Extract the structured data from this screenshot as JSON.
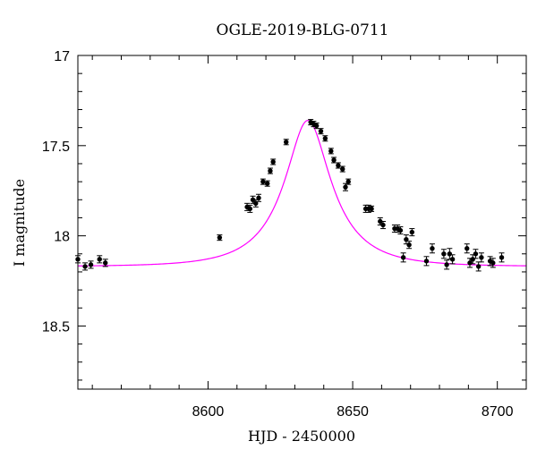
{
  "chart_data": {
    "type": "scatter",
    "title": "OGLE-2019-BLG-0711",
    "xlabel": "HJD - 2450000",
    "ylabel": "I magnitude",
    "xlim": [
      8555,
      8710
    ],
    "ylim": [
      17,
      18.85
    ],
    "y_inverted": true,
    "x_ticks": [
      8600,
      8650,
      8700
    ],
    "y_ticks": [
      17,
      17.5,
      18,
      18.5
    ],
    "x_tick_labels": [
      "8600",
      "8650",
      "8700"
    ],
    "y_tick_labels": [
      "17",
      "17.5",
      "18",
      "18.5"
    ],
    "grid": false,
    "legend": "none",
    "colors": {
      "data": "#000000",
      "model": "#ff00ff"
    },
    "series": [
      {
        "kind": "points",
        "x": [
          8555,
          8557.5,
          8559.5,
          8562.5,
          8564.5,
          8604,
          8613.5,
          8614.5,
          8615.5,
          8616.5,
          8617.5,
          8619,
          8620.5,
          8621.5,
          8622.5,
          8627,
          8635.5,
          8636.5,
          8637.5,
          8639,
          8640.5,
          8642.5,
          8643.5,
          8645,
          8646.5,
          8647.5,
          8648.5,
          8654.5,
          8655.5,
          8656.5,
          8659.5,
          8660.5,
          8664.5,
          8665.5,
          8666.5,
          8667.5,
          8668.5,
          8669.5,
          8670.5,
          8675.5,
          8677.5,
          8681.5,
          8682.5,
          8683.5,
          8684.5,
          8689.5,
          8690.5,
          8691.5,
          8692.5,
          8693.5,
          8694.5,
          8697.5,
          8698.5,
          8701.5
        ],
        "y": [
          18.13,
          18.17,
          18.16,
          18.13,
          18.15,
          18.01,
          17.84,
          17.85,
          17.8,
          17.82,
          17.79,
          17.7,
          17.71,
          17.64,
          17.59,
          17.48,
          17.37,
          17.38,
          17.39,
          17.42,
          17.46,
          17.53,
          17.58,
          17.61,
          17.63,
          17.73,
          17.7,
          17.85,
          17.85,
          17.85,
          17.92,
          17.94,
          17.96,
          17.96,
          17.97,
          18.12,
          18.02,
          18.05,
          17.98,
          18.14,
          18.07,
          18.1,
          18.16,
          18.1,
          18.13,
          18.07,
          18.15,
          18.13,
          18.1,
          18.17,
          18.12,
          18.14,
          18.15,
          18.12
        ],
        "err": [
          0.02,
          0.02,
          0.02,
          0.02,
          0.02,
          0.015,
          0.02,
          0.02,
          0.02,
          0.02,
          0.02,
          0.015,
          0.015,
          0.015,
          0.015,
          0.015,
          0.015,
          0.015,
          0.015,
          0.015,
          0.015,
          0.015,
          0.015,
          0.015,
          0.015,
          0.02,
          0.015,
          0.02,
          0.02,
          0.015,
          0.02,
          0.02,
          0.02,
          0.02,
          0.02,
          0.025,
          0.025,
          0.02,
          0.02,
          0.025,
          0.025,
          0.025,
          0.025,
          0.03,
          0.025,
          0.025,
          0.025,
          0.025,
          0.025,
          0.025,
          0.025,
          0.025,
          0.025,
          0.025
        ]
      },
      {
        "kind": "model-curve",
        "t0": 8634.5,
        "tE": 20,
        "u0": 0.4,
        "base_mag": 18.17,
        "peak_mag": 17.36
      }
    ]
  }
}
